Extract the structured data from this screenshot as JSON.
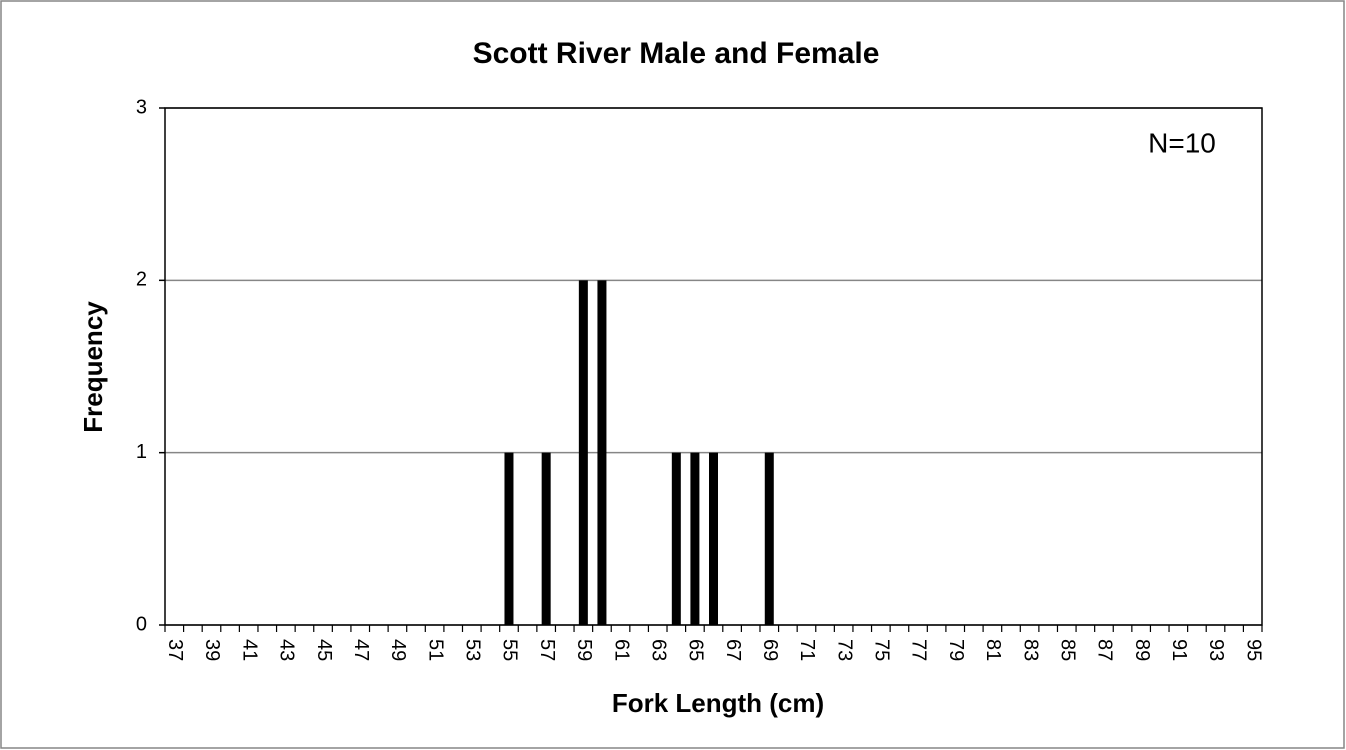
{
  "chart_data": {
    "type": "bar",
    "title": "Scott River Male and Female",
    "x_label": "Fork Length (cm)",
    "y_label": "Frequency",
    "annotation": "N=10",
    "categories": [
      "37",
      null,
      "39",
      null,
      "41",
      null,
      "43",
      null,
      "45",
      null,
      "47",
      null,
      "49",
      null,
      "51",
      null,
      "53",
      null,
      "55",
      null,
      "57",
      null,
      "59",
      null,
      "61",
      null,
      "63",
      null,
      "65",
      null,
      "67",
      null,
      "69",
      null,
      "71",
      null,
      "73",
      null,
      "75",
      null,
      "77",
      null,
      "79",
      null,
      "81",
      null,
      "83",
      null,
      "85",
      null,
      "87",
      null,
      "89",
      null,
      "91",
      null,
      "93",
      null,
      "95"
    ],
    "values": [
      0,
      0,
      0,
      0,
      0,
      0,
      0,
      0,
      0,
      0,
      0,
      0,
      0,
      0,
      0,
      0,
      0,
      0,
      1,
      0,
      1,
      0,
      2,
      2,
      0,
      0,
      0,
      1,
      1,
      1,
      0,
      0,
      1,
      0,
      0,
      0,
      0,
      0,
      0,
      0,
      0,
      0,
      0,
      0,
      0,
      0,
      0,
      0,
      0,
      0,
      0,
      0,
      0,
      0,
      0,
      0,
      0,
      0,
      0
    ],
    "color": "#000000",
    "ylim": [
      0,
      3
    ],
    "yticks": [
      0,
      1,
      2,
      3
    ],
    "grid": true
  }
}
